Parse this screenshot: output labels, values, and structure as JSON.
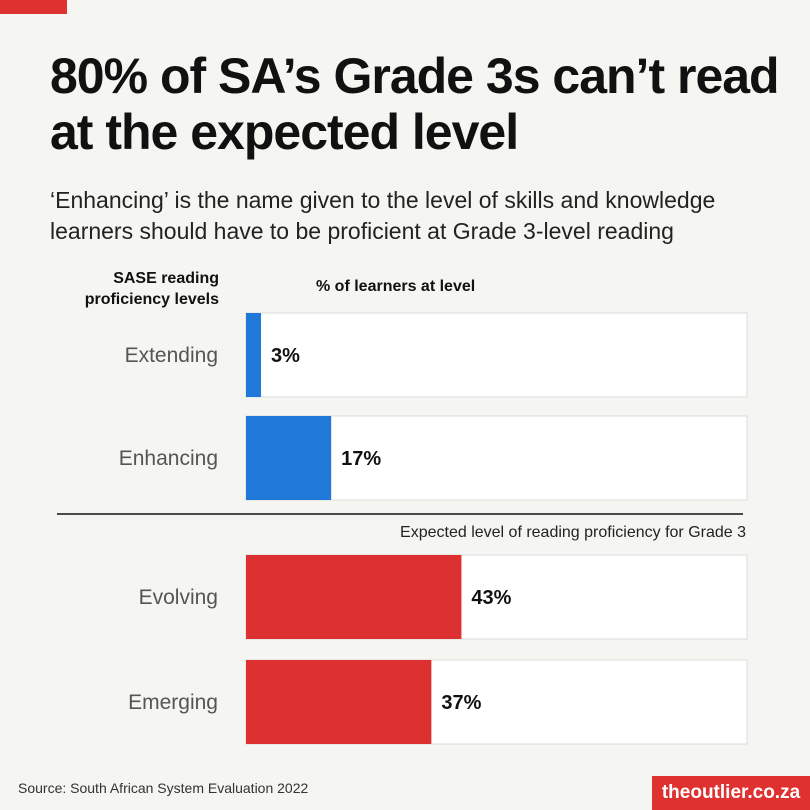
{
  "title": "80% of SA’s Grade 3s can’t read at the expected level",
  "subtitle": "‘Enhancing’ is the name given to the level of skills and knowledge learners should have to be proficient at Grade 3-level reading",
  "label_header": "SASE reading proficiency levels",
  "value_header": "% of learners at level",
  "expected_note": "Expected level of reading proficiency for Grade 3",
  "source": "Source: South African System Evaluation 2022",
  "brand": "theoutlier.co.za",
  "colors": {
    "accent": "#e03131",
    "above_expected": "#2079d8",
    "below_expected": "#dd3131",
    "track": "#ffffff"
  },
  "chart_data": {
    "type": "bar",
    "orientation": "horizontal",
    "categories": [
      "Extending",
      "Enhancing",
      "Evolving",
      "Emerging"
    ],
    "values": [
      3,
      17,
      43,
      37
    ],
    "value_labels": [
      "3%",
      "17%",
      "43%",
      "37%"
    ],
    "groups": [
      "above_expected",
      "above_expected",
      "below_expected",
      "below_expected"
    ],
    "xlim": [
      0,
      100
    ],
    "xlabel": "% of learners at level",
    "ylabel": "SASE reading proficiency levels",
    "grid": false
  }
}
